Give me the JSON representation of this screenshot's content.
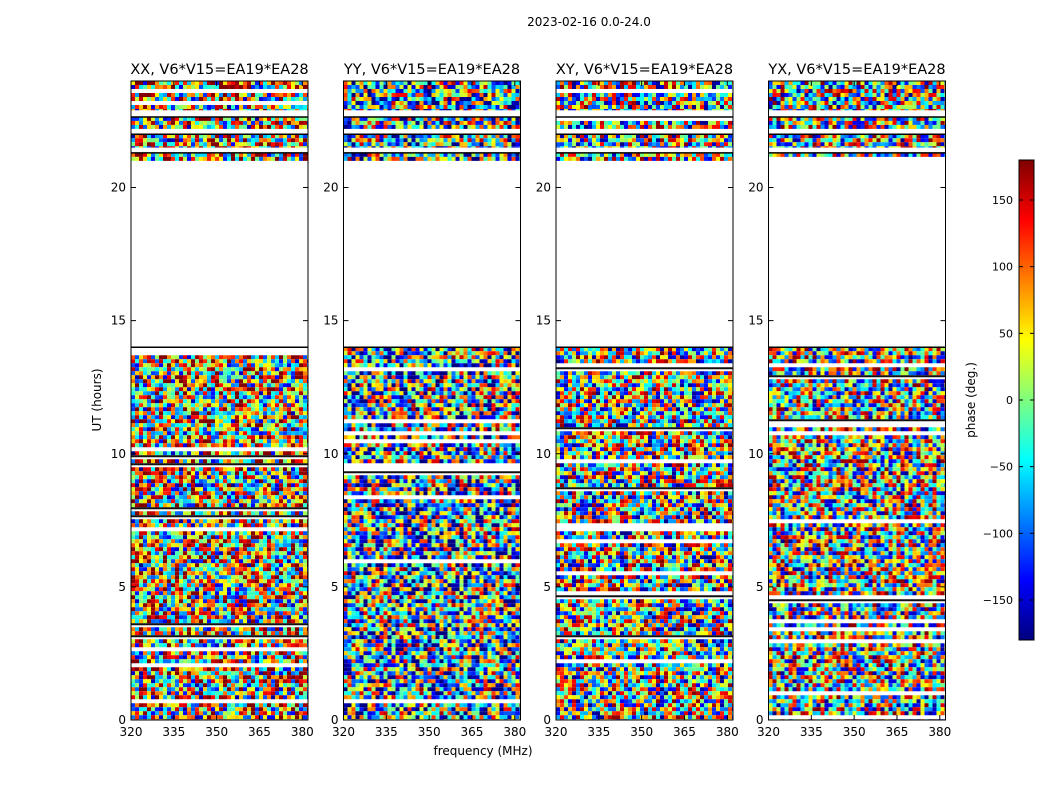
{
  "figure": {
    "suptitle": "2023-02-16 0.0-24.0"
  },
  "chart_data": {
    "type": "heatmap",
    "shared": {
      "xlabel": "frequency (MHz)",
      "ylabel": "UT (hours)",
      "xlim": [
        320,
        382
      ],
      "ylim": [
        0,
        24
      ],
      "xticks": [
        320,
        335,
        350,
        365,
        380
      ],
      "yticks": [
        0,
        5,
        10,
        15,
        20
      ]
    },
    "panels": [
      {
        "id": "xx",
        "title": "XX, V6*V15=EA19*EA28",
        "hue_bias": 0.35
      },
      {
        "id": "yy",
        "title": "YY, V6*V15=EA19*EA28",
        "hue_bias": -0.35
      },
      {
        "id": "xy",
        "title": "XY, V6*V15=EA19*EA28",
        "hue_bias": 0.0
      },
      {
        "id": "yx",
        "title": "YX, V6*V15=EA19*EA28",
        "hue_bias": 0.05
      }
    ],
    "flagged_ut_ranges": [
      [
        14.0,
        21.0
      ],
      [
        21.3,
        21.5
      ],
      [
        22.0,
        22.2
      ],
      [
        22.65,
        22.9
      ]
    ],
    "data_ut_ranges": [
      [
        0.0,
        14.0
      ],
      [
        21.0,
        21.3
      ],
      [
        21.5,
        22.0
      ],
      [
        22.2,
        22.65
      ],
      [
        22.9,
        24.0
      ]
    ],
    "colorbar": {
      "label": "phase (deg.)",
      "vmin": -180,
      "vmax": 180,
      "ticks": [
        -150,
        -100,
        -50,
        0,
        50,
        100,
        150
      ],
      "tick_labels": [
        "−150",
        "−100",
        "−50",
        "0",
        "50",
        "100",
        "150"
      ],
      "colormap": "jet",
      "colors": [
        "#00007f",
        "#0000ff",
        "#007fff",
        "#00ffff",
        "#7fff7f",
        "#ffff00",
        "#ff7f00",
        "#ff0000",
        "#7f0000"
      ]
    }
  }
}
